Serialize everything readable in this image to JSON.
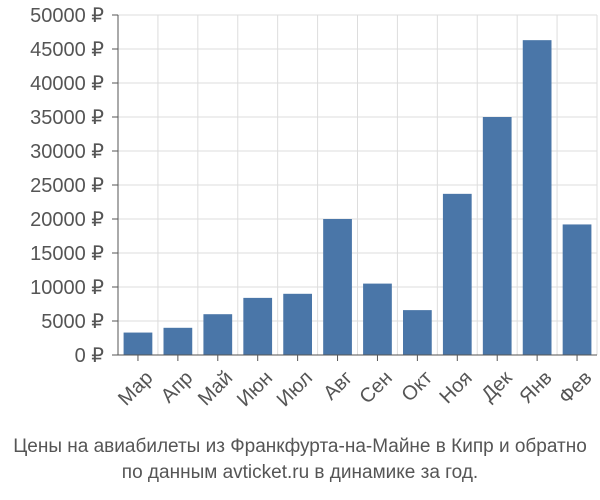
{
  "chart_data": {
    "type": "bar",
    "title": "",
    "xlabel": "",
    "ylabel": "",
    "currency": "₽",
    "ylim": [
      0,
      50000
    ],
    "yticks": [
      0,
      5000,
      10000,
      15000,
      20000,
      25000,
      30000,
      35000,
      40000,
      45000,
      50000
    ],
    "ytick_labels": [
      "0 ₽",
      "5000 ₽",
      "10000 ₽",
      "15000 ₽",
      "20000 ₽",
      "25000 ₽",
      "30000 ₽",
      "35000 ₽",
      "40000 ₽",
      "45000 ₽",
      "50000 ₽"
    ],
    "categories": [
      "Мар",
      "Апр",
      "Май",
      "Июн",
      "Июл",
      "Авг",
      "Сен",
      "Окт",
      "Ноя",
      "Дек",
      "Янв",
      "Фев"
    ],
    "values": [
      3300,
      4000,
      6000,
      8400,
      9000,
      20000,
      10500,
      6600,
      23700,
      35000,
      46300,
      19200
    ],
    "grid": true,
    "bar_color": "#4a76a8",
    "grid_color": "#dddddd"
  },
  "caption": {
    "line1": "Цены на авиабилеты из Франкфурта-на-Майне в Кипр и обратно",
    "line2": "по данным avticket.ru в динамике за год."
  }
}
